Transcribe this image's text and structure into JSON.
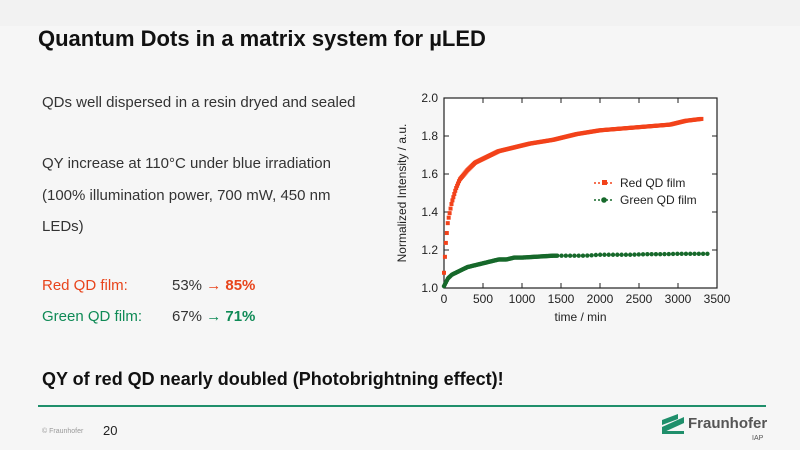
{
  "slide": {
    "title": "Quantum Dots in a matrix system for µLED",
    "bullets": [
      "QDs well dispersed in a resin dryed and sealed",
      "QY increase at 110°C under blue irradiation",
      "(100% illumination power, 700 mW, 450 nm",
      "LEDs)"
    ],
    "qd_results": [
      {
        "label": "Red QD film:",
        "before": "53%",
        "arrow": "→",
        "after": "85%",
        "color": "#e8441b"
      },
      {
        "label": "Green QD film:",
        "before": "67%",
        "arrow": "→",
        "after": "71%",
        "color": "#0f8a56"
      }
    ],
    "conclusion": "QY of red QD nearly doubled (Photobrightning effect)!",
    "page_number": "20",
    "footer_left": "© Fraunhofer",
    "logo": {
      "name": "Fraunhofer",
      "sub": "IAP"
    },
    "colors": {
      "accent": "#1f8f6b",
      "red": "#e8441b",
      "green": "#0f8a56"
    }
  },
  "chart_data": {
    "type": "scatter",
    "xlabel": "time / min",
    "ylabel": "Normalized Intensity / a.u.",
    "xlim": [
      0,
      3500
    ],
    "ylim": [
      1.0,
      2.0
    ],
    "xticks": [
      0,
      500,
      1000,
      1500,
      2000,
      2500,
      3000,
      3500
    ],
    "yticks": [
      1.0,
      1.2,
      1.4,
      1.6,
      1.8,
      2.0
    ],
    "legend_position": "right-middle",
    "series": [
      {
        "name": "Red QD film",
        "color": "#f2421a",
        "marker": "square",
        "x": [
          0,
          20,
          50,
          100,
          150,
          200,
          300,
          400,
          500,
          700,
          900,
          1100,
          1400,
          1700,
          2000,
          2300,
          2600,
          2900,
          3100,
          3300
        ],
        "y": [
          1.08,
          1.22,
          1.35,
          1.45,
          1.52,
          1.57,
          1.62,
          1.66,
          1.68,
          1.72,
          1.74,
          1.76,
          1.78,
          1.81,
          1.83,
          1.84,
          1.85,
          1.86,
          1.88,
          1.89
        ]
      },
      {
        "name": "Green QD film",
        "color": "#17692b",
        "marker": "circle",
        "x": [
          0,
          50,
          100,
          200,
          300,
          400,
          500,
          600,
          700,
          800,
          900,
          1000,
          1200,
          1400,
          1600,
          1800,
          2000,
          2200,
          2400,
          2600,
          2800,
          3000,
          3200,
          3400
        ],
        "y": [
          1.01,
          1.05,
          1.07,
          1.09,
          1.11,
          1.12,
          1.13,
          1.14,
          1.15,
          1.15,
          1.16,
          1.16,
          1.165,
          1.17,
          1.17,
          1.17,
          1.175,
          1.175,
          1.175,
          1.178,
          1.178,
          1.18,
          1.18,
          1.18
        ]
      }
    ]
  }
}
